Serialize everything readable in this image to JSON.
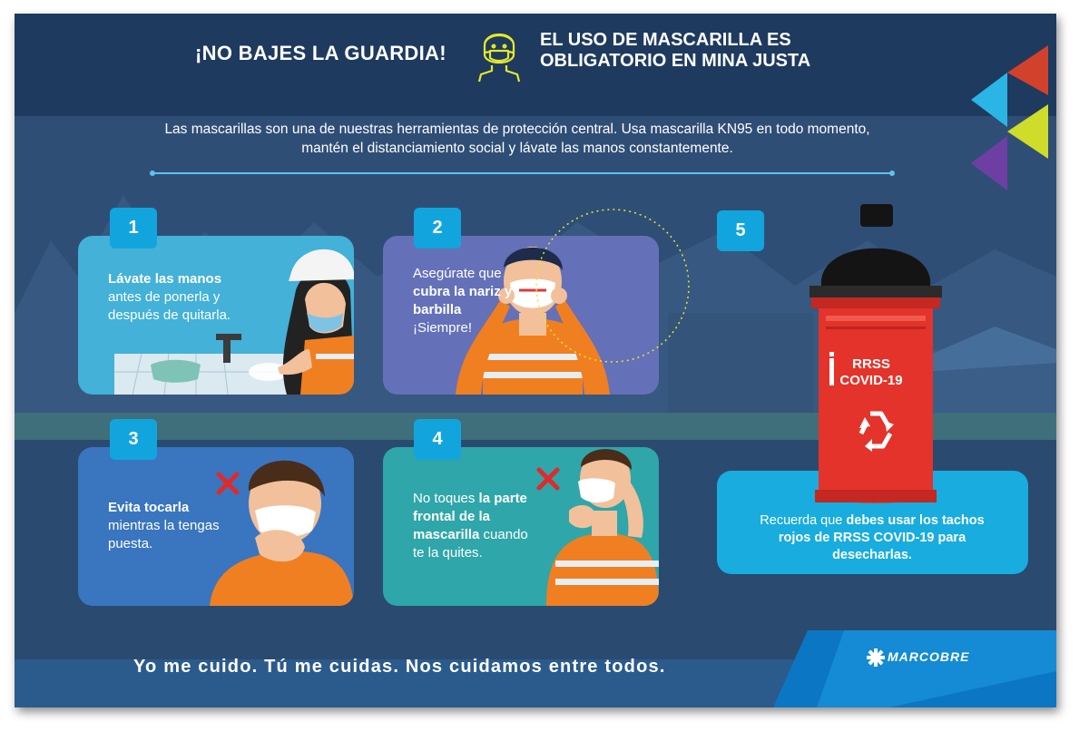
{
  "header": {
    "left_slogan": "¡NO BAJES LA GUARDIA!",
    "title_line1": "EL USO DE MASCARILLA ES",
    "title_line2": "OBLIGATORIO EN MINA JUSTA"
  },
  "intro": "Las mascarillas son una de nuestras herramientas de protección central. Usa mascarilla KN95 en todo momento, mantén el distanciamiento social y lávate las manos constantemente.",
  "steps": [
    {
      "number": "1",
      "bold": "Lávate las manos",
      "text": " antes de ponerla y después de quitarla."
    },
    {
      "number": "2",
      "pre": "Asegúrate que ",
      "bold": "cubra la nariz y barbilla",
      "text": " ¡Siempre!"
    },
    {
      "number": "3",
      "bold": "Evita tocarla",
      "text": " mientras la tengas puesta."
    },
    {
      "number": "4",
      "pre": "No toques ",
      "bold": "la parte frontal de la mascarilla",
      "text": " cuando te la quites."
    },
    {
      "number": "5",
      "pre": "Recuerda que ",
      "bold": "debes usar los tachos rojos de RRSS COVID-19 para desecharlas.",
      "text": ""
    }
  ],
  "bin_label_line1": "RRSS",
  "bin_label_line2": "COVID-19",
  "footer": "Yo me cuido. Tú me cuidas. Nos cuidamos entre todos.",
  "logo": "MARCOBRE",
  "colors": {
    "background": "#2f4e76",
    "header": "#1e3a5f",
    "badge": "#12a5dd",
    "card1": "#43b1d8",
    "card2": "#6471b8",
    "card3": "#3a75c0",
    "card4": "#2fa6a9",
    "card5": "#18acdf",
    "bin_red": "#e3332b",
    "mask_icon": "#e7e82a"
  }
}
